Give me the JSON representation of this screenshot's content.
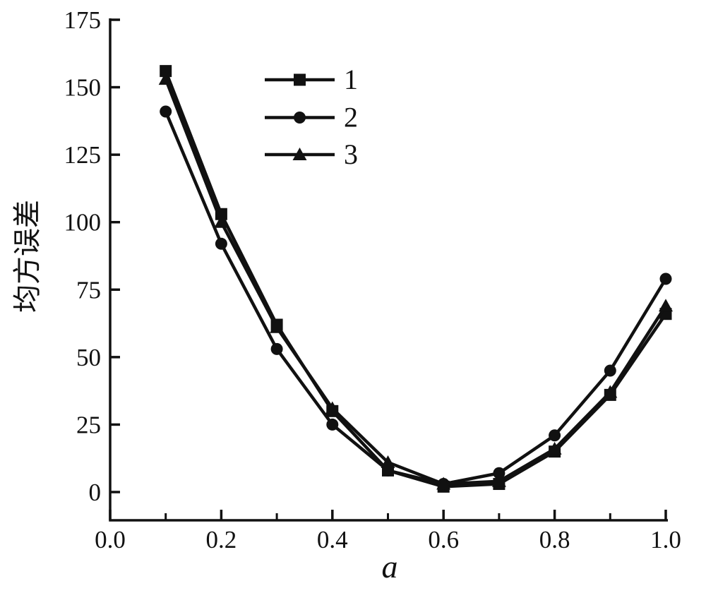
{
  "figure": {
    "background": "#ffffff",
    "ink_color": "#111111"
  },
  "chart_data": {
    "type": "line",
    "title": "",
    "xlabel": "a",
    "ylabel": "均方误差",
    "x": [
      0.1,
      0.2,
      0.3,
      0.4,
      0.5,
      0.6,
      0.7,
      0.8,
      0.9,
      1.0
    ],
    "series": [
      {
        "name": "1",
        "marker": "square",
        "values": [
          156,
          103,
          62,
          30,
          8,
          2,
          3,
          15,
          36,
          66
        ]
      },
      {
        "name": "2",
        "marker": "circle",
        "values": [
          141,
          92,
          53,
          25,
          8,
          3,
          7,
          21,
          45,
          79
        ]
      },
      {
        "name": "3",
        "marker": "triangle",
        "values": [
          153,
          100,
          61,
          31,
          11,
          3,
          4,
          16,
          37,
          69
        ]
      }
    ],
    "xlim": [
      0.0,
      1.0
    ],
    "ylim": [
      0,
      175
    ],
    "x_major_ticks": [
      0.0,
      0.2,
      0.4,
      0.6,
      0.8,
      1.0
    ],
    "x_minor_ticks": [
      0.1,
      0.3,
      0.5,
      0.7,
      0.9
    ],
    "y_major_ticks": [
      0,
      25,
      50,
      75,
      100,
      125,
      150,
      175
    ],
    "x_tick_labels": [
      "0.0",
      "0.2",
      "0.4",
      "0.6",
      "0.8",
      "1.0"
    ],
    "y_tick_labels": [
      "0",
      "25",
      "50",
      "75",
      "100",
      "125",
      "150",
      "175"
    ],
    "grid": false,
    "line_color": "#111111",
    "legend": {
      "position": "upper-left-of-center",
      "entries": [
        "1",
        "2",
        "3"
      ]
    }
  }
}
